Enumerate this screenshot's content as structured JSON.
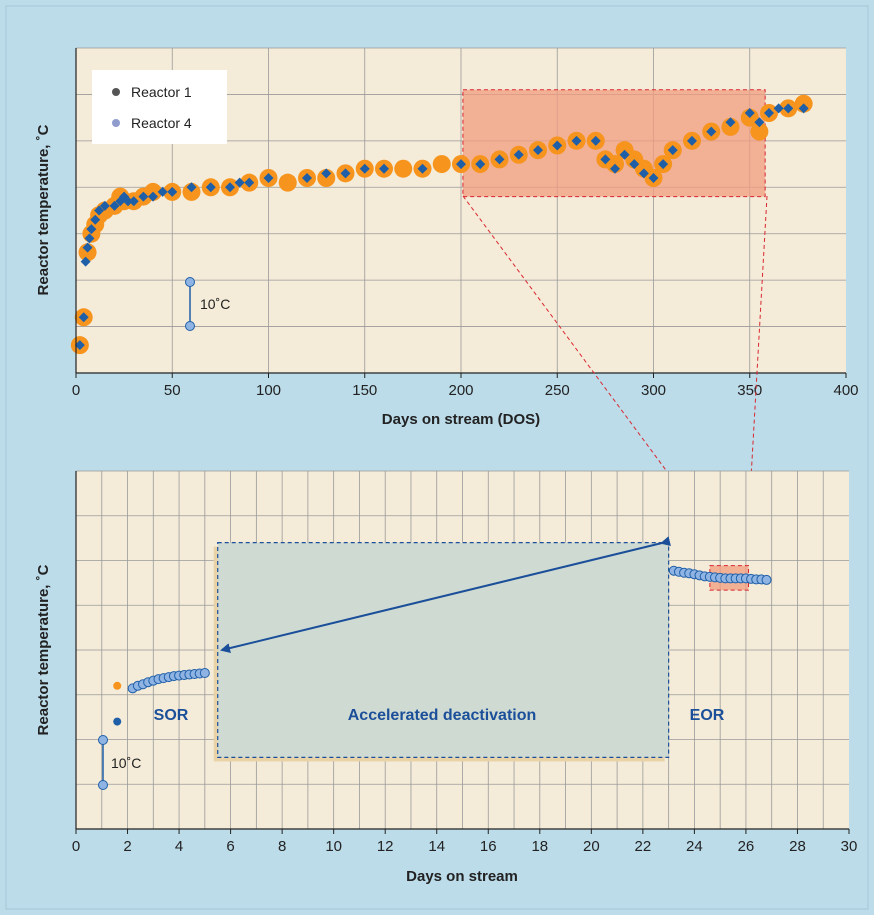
{
  "chart_data": [
    {
      "type": "scatter",
      "title": "",
      "xlabel": "Days on stream (DOS)",
      "ylabel": "Reactor temperature, ˚C",
      "xlim": [
        0,
        400
      ],
      "ylim": [
        0,
        70
      ],
      "x_ticks": [
        "0",
        "50",
        "100",
        "150",
        "200",
        "250",
        "300",
        "350",
        "400"
      ],
      "grid": true,
      "legend": {
        "position": "top-left",
        "entries": [
          "Reactor 1",
          "Reactor 4"
        ]
      },
      "scale_bar_label": "10˚C",
      "series": [
        {
          "name": "Reactor 1",
          "color": "#1f5fa8",
          "marker": "diamond",
          "points": [
            [
              2,
              6
            ],
            [
              4,
              12
            ],
            [
              5,
              24
            ],
            [
              6,
              27
            ],
            [
              7,
              29
            ],
            [
              8,
              31
            ],
            [
              10,
              33
            ],
            [
              12,
              35
            ],
            [
              15,
              36
            ],
            [
              20,
              36
            ],
            [
              23,
              37
            ],
            [
              25,
              38
            ],
            [
              27,
              37
            ],
            [
              30,
              37
            ],
            [
              35,
              38
            ],
            [
              40,
              38
            ],
            [
              45,
              39
            ],
            [
              50,
              39
            ],
            [
              60,
              40
            ],
            [
              70,
              40
            ],
            [
              80,
              40
            ],
            [
              85,
              41
            ],
            [
              90,
              41
            ],
            [
              100,
              42
            ],
            [
              120,
              42
            ],
            [
              130,
              43
            ],
            [
              140,
              43
            ],
            [
              150,
              44
            ],
            [
              160,
              44
            ],
            [
              180,
              44
            ],
            [
              200,
              45
            ],
            [
              210,
              45
            ],
            [
              220,
              46
            ],
            [
              230,
              47
            ],
            [
              240,
              48
            ],
            [
              250,
              49
            ],
            [
              260,
              50
            ],
            [
              270,
              50
            ],
            [
              275,
              46
            ],
            [
              280,
              44
            ],
            [
              285,
              47
            ],
            [
              290,
              45
            ],
            [
              295,
              43
            ],
            [
              300,
              42
            ],
            [
              305,
              45
            ],
            [
              310,
              48
            ],
            [
              320,
              50
            ],
            [
              330,
              52
            ],
            [
              340,
              54
            ],
            [
              350,
              56
            ],
            [
              355,
              54
            ],
            [
              360,
              56
            ],
            [
              365,
              57
            ],
            [
              370,
              57
            ],
            [
              378,
              57
            ]
          ]
        },
        {
          "name": "Reactor 4",
          "color": "#f7941d",
          "marker": "circle",
          "points": [
            [
              2,
              6
            ],
            [
              4,
              12
            ],
            [
              6,
              26
            ],
            [
              8,
              30
            ],
            [
              10,
              32
            ],
            [
              12,
              34
            ],
            [
              15,
              35
            ],
            [
              20,
              36
            ],
            [
              23,
              38
            ],
            [
              25,
              37
            ],
            [
              30,
              37
            ],
            [
              35,
              38
            ],
            [
              40,
              39
            ],
            [
              50,
              39
            ],
            [
              60,
              39
            ],
            [
              70,
              40
            ],
            [
              80,
              40
            ],
            [
              90,
              41
            ],
            [
              100,
              42
            ],
            [
              110,
              41
            ],
            [
              120,
              42
            ],
            [
              130,
              42
            ],
            [
              140,
              43
            ],
            [
              150,
              44
            ],
            [
              160,
              44
            ],
            [
              170,
              44
            ],
            [
              180,
              44
            ],
            [
              190,
              45
            ],
            [
              200,
              45
            ],
            [
              210,
              45
            ],
            [
              220,
              46
            ],
            [
              230,
              47
            ],
            [
              240,
              48
            ],
            [
              250,
              49
            ],
            [
              260,
              50
            ],
            [
              270,
              50
            ],
            [
              275,
              46
            ],
            [
              280,
              45
            ],
            [
              285,
              48
            ],
            [
              290,
              46
            ],
            [
              295,
              44
            ],
            [
              300,
              42
            ],
            [
              305,
              45
            ],
            [
              310,
              48
            ],
            [
              320,
              50
            ],
            [
              330,
              52
            ],
            [
              340,
              53
            ],
            [
              350,
              55
            ],
            [
              355,
              52
            ],
            [
              360,
              56
            ],
            [
              370,
              57
            ],
            [
              378,
              58
            ]
          ]
        }
      ],
      "highlight_region": {
        "x": [
          201,
          358
        ],
        "y": [
          38,
          61
        ]
      }
    },
    {
      "type": "scatter",
      "title": "",
      "xlabel": "Days on stream",
      "ylabel": "Reactor temperature, ˚C",
      "xlim": [
        0,
        30
      ],
      "ylim": [
        0,
        70
      ],
      "x_ticks": [
        "0",
        "2",
        "4",
        "6",
        "8",
        "10",
        "12",
        "14",
        "16",
        "18",
        "20",
        "22",
        "24",
        "26",
        "28",
        "30"
      ],
      "grid": true,
      "scale_bar_label": "10˚C",
      "annotations": {
        "sor": "SOR",
        "eor": "EOR",
        "region": "Accelerated deactivation"
      },
      "isolated_points": [
        {
          "x": 1.6,
          "y": 28,
          "color": "#f7941d"
        },
        {
          "x": 1.6,
          "y": 21,
          "color": "#1f5fa8"
        }
      ],
      "series": [
        {
          "color": "#8fb4e3",
          "marker": "circle",
          "points": [
            [
              2.2,
              27.5
            ],
            [
              2.4,
              28
            ],
            [
              2.6,
              28.3
            ],
            [
              2.8,
              28.7
            ],
            [
              3.0,
              29
            ],
            [
              3.2,
              29.3
            ],
            [
              3.4,
              29.5
            ],
            [
              3.6,
              29.7
            ],
            [
              3.8,
              29.9
            ],
            [
              4.0,
              30
            ],
            [
              4.2,
              30.1
            ],
            [
              4.4,
              30.2
            ],
            [
              4.6,
              30.3
            ],
            [
              4.8,
              30.4
            ],
            [
              5.0,
              30.5
            ],
            [
              23.2,
              50.5
            ],
            [
              23.4,
              50.3
            ],
            [
              23.6,
              50.1
            ],
            [
              23.8,
              50
            ],
            [
              24.0,
              49.8
            ],
            [
              24.2,
              49.6
            ],
            [
              24.4,
              49.4
            ],
            [
              24.6,
              49.3
            ],
            [
              24.8,
              49.2
            ],
            [
              25.0,
              49.1
            ],
            [
              25.2,
              49
            ],
            [
              25.4,
              49
            ],
            [
              25.6,
              49
            ],
            [
              25.8,
              49
            ],
            [
              26.0,
              49
            ],
            [
              26.2,
              48.9
            ],
            [
              26.4,
              48.8
            ],
            [
              26.6,
              48.8
            ],
            [
              26.8,
              48.7
            ]
          ]
        }
      ],
      "sor_window": {
        "x": [
          5.5,
          23
        ],
        "y": [
          14,
          56
        ]
      },
      "zoom_window": {
        "x": [
          24.6,
          26.1
        ],
        "y": [
          46.7,
          51.5
        ]
      }
    }
  ]
}
